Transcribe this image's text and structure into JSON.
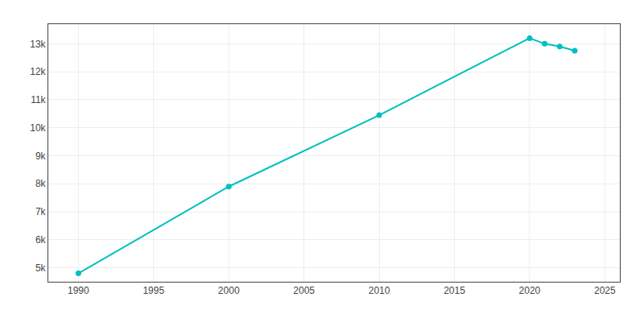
{
  "chart_data": {
    "type": "line",
    "x": [
      1990,
      2000,
      2010,
      2020,
      2021,
      2022,
      2023
    ],
    "values": [
      4800,
      7900,
      10450,
      13200,
      13000,
      12900,
      12750
    ],
    "color": "#00C0C0",
    "marker": "circle",
    "xlim": [
      1988,
      2026
    ],
    "xticks": [
      1990,
      1995,
      2000,
      2005,
      2010,
      2015,
      2020,
      2025
    ],
    "ylim": [
      4500,
      13700
    ],
    "yticks": [
      {
        "value": 5000,
        "label": "5k"
      },
      {
        "value": 6000,
        "label": "6k"
      },
      {
        "value": 7000,
        "label": "7k"
      },
      {
        "value": 8000,
        "label": "8k"
      },
      {
        "value": 9000,
        "label": "9k"
      },
      {
        "value": 10000,
        "label": "10k"
      },
      {
        "value": 11000,
        "label": "11k"
      },
      {
        "value": 12000,
        "label": "12k"
      },
      {
        "value": 13000,
        "label": "13k"
      }
    ],
    "grid": true
  }
}
